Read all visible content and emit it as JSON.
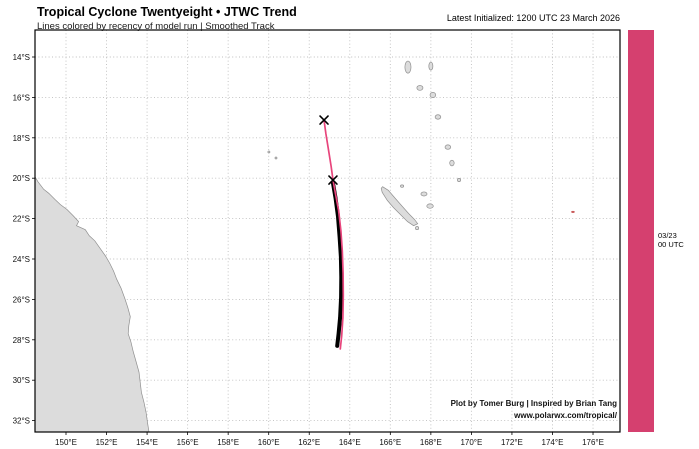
{
  "header": {
    "title": "Tropical Cyclone Twentyeight • JTWC Trend",
    "subtitle": "Lines colored by recency of model run | Smoothed Track",
    "init_label": "Latest Initialized: 1200 UTC 23 March 2026"
  },
  "credits": {
    "line1": "Plot by Tomer Burg | Inspired by Brian Tang",
    "line2": "www.polarwx.com/tropical/"
  },
  "colorbar": {
    "color": "#d5406f",
    "label_line1": "03/23",
    "label_line2": "00 UTC"
  },
  "map": {
    "grid_color": "#bfbfbf",
    "land_color": "#dcdcdc",
    "coast_color": "#8f8f8f",
    "frame_color": "#000000",
    "lon_ticks": [
      {
        "value": 150,
        "label": "150°E"
      },
      {
        "value": 152,
        "label": "152°E"
      },
      {
        "value": 154,
        "label": "154°E"
      },
      {
        "value": 156,
        "label": "156°E"
      },
      {
        "value": 158,
        "label": "158°E"
      },
      {
        "value": 160,
        "label": "160°E"
      },
      {
        "value": 162,
        "label": "162°E"
      },
      {
        "value": 164,
        "label": "164°E"
      },
      {
        "value": 166,
        "label": "166°E"
      },
      {
        "value": 168,
        "label": "168°E"
      },
      {
        "value": 170,
        "label": "170°E"
      },
      {
        "value": 172,
        "label": "172°E"
      },
      {
        "value": 174,
        "label": "174°E"
      },
      {
        "value": 176,
        "label": "176°E"
      }
    ],
    "lat_ticks": [
      {
        "value": 14,
        "label": "14°S"
      },
      {
        "value": 16,
        "label": "16°S"
      },
      {
        "value": 18,
        "label": "18°S"
      },
      {
        "value": 20,
        "label": "20°S"
      },
      {
        "value": 22,
        "label": "22°S"
      },
      {
        "value": 24,
        "label": "24°S"
      },
      {
        "value": 26,
        "label": "26°S"
      },
      {
        "value": 28,
        "label": "28°S"
      },
      {
        "value": 30,
        "label": "30°S"
      },
      {
        "value": 32,
        "label": "32°S"
      }
    ],
    "polygons": [
      {
        "name": "australia-coast",
        "points": [
          [
            148.45,
            19.9
          ],
          [
            148.62,
            20.18
          ],
          [
            148.9,
            20.55
          ],
          [
            149.15,
            20.75
          ],
          [
            149.45,
            21.05
          ],
          [
            149.72,
            21.3
          ],
          [
            150.05,
            21.55
          ],
          [
            150.35,
            21.85
          ],
          [
            150.62,
            22.15
          ],
          [
            150.52,
            22.35
          ],
          [
            150.95,
            22.55
          ],
          [
            151.15,
            22.85
          ],
          [
            151.42,
            23.1
          ],
          [
            151.7,
            23.5
          ],
          [
            151.95,
            23.85
          ],
          [
            152.15,
            24.2
          ],
          [
            152.35,
            24.6
          ],
          [
            152.5,
            25.0
          ],
          [
            152.72,
            25.45
          ],
          [
            152.9,
            25.95
          ],
          [
            153.05,
            26.4
          ],
          [
            153.17,
            26.85
          ],
          [
            153.1,
            27.3
          ],
          [
            153.07,
            27.7
          ],
          [
            153.2,
            28.1
          ],
          [
            153.32,
            28.6
          ],
          [
            153.45,
            29.05
          ],
          [
            153.6,
            29.6
          ],
          [
            153.66,
            30.1
          ],
          [
            153.72,
            30.6
          ],
          [
            153.85,
            31.1
          ],
          [
            153.95,
            31.6
          ],
          [
            154.02,
            32.1
          ],
          [
            154.1,
            32.6
          ],
          [
            148.4,
            32.6
          ]
        ]
      },
      {
        "name": "new-caledonia",
        "points": [
          [
            165.62,
            20.42
          ],
          [
            165.9,
            20.6
          ],
          [
            166.2,
            20.95
          ],
          [
            166.55,
            21.35
          ],
          [
            166.9,
            21.75
          ],
          [
            167.2,
            22.05
          ],
          [
            167.35,
            22.25
          ],
          [
            167.15,
            22.35
          ],
          [
            166.85,
            22.15
          ],
          [
            166.5,
            21.8
          ],
          [
            166.15,
            21.45
          ],
          [
            165.85,
            21.1
          ],
          [
            165.6,
            20.7
          ],
          [
            165.55,
            20.5
          ]
        ]
      }
    ],
    "islands": [
      {
        "name": "espiritu-santo",
        "lon": 166.87,
        "lat": 14.5,
        "rlon": 0.15,
        "rlat": 0.3
      },
      {
        "name": "maewo-pentecost",
        "lon": 168.0,
        "lat": 14.45,
        "rlon": 0.1,
        "rlat": 0.2
      },
      {
        "name": "malekula",
        "lon": 167.46,
        "lat": 15.53,
        "rlon": 0.15,
        "rlat": 0.12
      },
      {
        "name": "ambrym",
        "lon": 168.1,
        "lat": 15.88,
        "rlon": 0.14,
        "rlat": 0.13
      },
      {
        "name": "efate",
        "lon": 168.35,
        "lat": 16.97,
        "rlon": 0.14,
        "rlat": 0.11
      },
      {
        "name": "erromango",
        "lon": 168.84,
        "lat": 18.46,
        "rlon": 0.14,
        "rlat": 0.11
      },
      {
        "name": "tanna",
        "lon": 169.04,
        "lat": 19.25,
        "rlon": 0.11,
        "rlat": 0.14
      },
      {
        "name": "aneityum",
        "lon": 169.39,
        "lat": 20.09,
        "rlon": 0.08,
        "rlat": 0.08
      },
      {
        "name": "ouvea",
        "lon": 166.58,
        "lat": 20.39,
        "rlon": 0.08,
        "rlat": 0.06
      },
      {
        "name": "lifou",
        "lon": 167.66,
        "lat": 20.78,
        "rlon": 0.15,
        "rlat": 0.1
      },
      {
        "name": "mare",
        "lon": 167.96,
        "lat": 21.38,
        "rlon": 0.16,
        "rlat": 0.11
      },
      {
        "name": "isle-of-pines",
        "lon": 167.32,
        "lat": 22.47,
        "rlon": 0.08,
        "rlat": 0.08
      },
      {
        "name": "reef-islet-1",
        "lon": 160.01,
        "lat": 18.7,
        "rlon": 0.05,
        "rlat": 0.05
      },
      {
        "name": "reef-islet-2",
        "lon": 160.36,
        "lat": 19.0,
        "rlon": 0.05,
        "rlat": 0.05
      }
    ],
    "specks": [
      {
        "name": "red-speck",
        "lon": 175.01,
        "lat": 21.67,
        "rlon": 0.09,
        "rlat": 0.05,
        "color": "#c95a5a"
      }
    ]
  },
  "chart_data": {
    "type": "line",
    "title": "Tropical Cyclone Twentyeight • JTWC Trend",
    "lon_range": [
      148.45,
      177.35
    ],
    "lat_range": [
      12.66,
      32.56
    ],
    "grid": true,
    "tracks": [
      {
        "name": "smoothed-track",
        "color": "#000000",
        "width": 4,
        "points": [
          [
            163.17,
            20.25
          ],
          [
            163.3,
            21.0
          ],
          [
            163.42,
            21.9
          ],
          [
            163.5,
            22.9
          ],
          [
            163.56,
            23.9
          ],
          [
            163.58,
            24.9
          ],
          [
            163.57,
            25.9
          ],
          [
            163.52,
            26.9
          ],
          [
            163.45,
            27.7
          ],
          [
            163.38,
            28.3
          ]
        ]
      },
      {
        "name": "model-run-0323-00utc",
        "color": "#e8457c",
        "width": 1.7,
        "points": [
          [
            162.73,
            17.12
          ],
          [
            162.82,
            17.8
          ],
          [
            162.95,
            18.6
          ],
          [
            163.08,
            19.4
          ],
          [
            163.17,
            20.09
          ],
          [
            163.3,
            20.8
          ],
          [
            163.45,
            21.6
          ],
          [
            163.56,
            22.6
          ],
          [
            163.63,
            23.6
          ],
          [
            163.67,
            24.7
          ],
          [
            163.68,
            25.8
          ],
          [
            163.66,
            26.9
          ],
          [
            163.6,
            27.8
          ],
          [
            163.53,
            28.45
          ]
        ]
      }
    ],
    "markers": [
      {
        "name": "x-marker-initial",
        "symbol": "x",
        "lon": 162.73,
        "lat": 17.12
      },
      {
        "name": "x-marker-current",
        "symbol": "x",
        "lon": 163.17,
        "lat": 20.09
      }
    ]
  }
}
